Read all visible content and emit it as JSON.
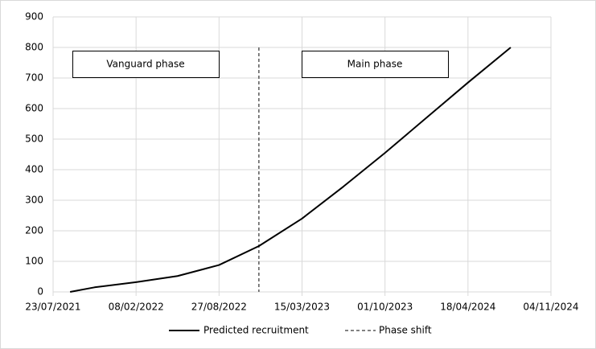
{
  "chart_data": {
    "type": "line",
    "x": [
      "02/09/2021",
      "31/10/2021",
      "08/02/2022",
      "19/05/2022",
      "27/08/2022",
      "01/12/2022",
      "15/03/2023",
      "23/06/2023",
      "01/10/2023",
      "09/01/2024",
      "18/04/2024",
      "30/07/2024"
    ],
    "series": [
      {
        "name": "Predicted recruitment",
        "color": "#000000",
        "values": [
          0,
          15,
          32,
          52,
          88,
          150,
          240,
          345,
          455,
          570,
          685,
          800
        ]
      }
    ],
    "phase_shift": {
      "name": "Phase shift",
      "x": "01/12/2022",
      "color": "#595959"
    },
    "annotations": [
      "Vanguard phase",
      "Main phase"
    ],
    "xlim": [
      "23/07/2021",
      "04/11/2024"
    ],
    "xticks": [
      "23/07/2021",
      "08/02/2022",
      "27/08/2022",
      "15/03/2023",
      "01/10/2023",
      "18/04/2024",
      "04/11/2024"
    ],
    "ylim": [
      0,
      900
    ],
    "yticks": [
      0,
      100,
      200,
      300,
      400,
      500,
      600,
      700,
      800,
      900
    ],
    "grid": true
  }
}
